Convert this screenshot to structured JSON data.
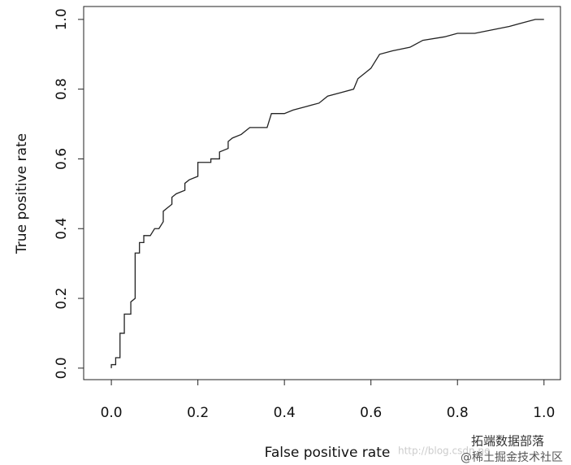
{
  "chart_data": {
    "type": "line",
    "xlabel": "False positive rate",
    "ylabel": "True positive rate",
    "x": [
      0,
      0,
      0.01,
      0.01,
      0.02,
      0.02,
      0.03,
      0.03,
      0.045,
      0.045,
      0.055,
      0.055,
      0.065,
      0.065,
      0.075,
      0.075,
      0.09,
      0.095,
      0.1,
      0.11,
      0.12,
      0.12,
      0.13,
      0.14,
      0.14,
      0.15,
      0.17,
      0.17,
      0.18,
      0.2,
      0.2,
      0.23,
      0.23,
      0.25,
      0.25,
      0.27,
      0.27,
      0.28,
      0.3,
      0.31,
      0.32,
      0.36,
      0.37,
      0.4,
      0.42,
      0.45,
      0.48,
      0.5,
      0.53,
      0.56,
      0.57,
      0.59,
      0.6,
      0.62,
      0.65,
      0.69,
      0.72,
      0.77,
      0.8,
      0.84,
      0.88,
      0.92,
      0.95,
      0.98,
      1.0
    ],
    "values": [
      0,
      0.01,
      0.01,
      0.03,
      0.03,
      0.1,
      0.1,
      0.155,
      0.155,
      0.19,
      0.2,
      0.33,
      0.33,
      0.36,
      0.36,
      0.38,
      0.38,
      0.39,
      0.4,
      0.4,
      0.42,
      0.45,
      0.46,
      0.47,
      0.49,
      0.5,
      0.51,
      0.53,
      0.54,
      0.55,
      0.59,
      0.59,
      0.6,
      0.6,
      0.62,
      0.63,
      0.65,
      0.66,
      0.67,
      0.68,
      0.69,
      0.69,
      0.73,
      0.73,
      0.74,
      0.75,
      0.76,
      0.78,
      0.79,
      0.8,
      0.83,
      0.85,
      0.86,
      0.9,
      0.91,
      0.92,
      0.94,
      0.95,
      0.96,
      0.96,
      0.97,
      0.98,
      0.99,
      1.0,
      1.0
    ],
    "color": "#222222",
    "xlim": [
      -0.064,
      1.038
    ],
    "ylim": [
      -0.033,
      1.037
    ],
    "xticks": [
      {
        "value": 0,
        "label": "0.0"
      },
      0.2,
      0.4,
      0.6,
      0.8,
      {
        "value": 1,
        "label": "1.0"
      }
    ],
    "yticks": [
      {
        "value": 0,
        "label": "0.0"
      },
      0.2,
      0.4,
      0.6,
      0.8,
      {
        "value": 1,
        "label": "1.0"
      }
    ],
    "annotations": [
      "http://blog.csdn.ne",
      "拓端数据部落",
      "@稀土掘金技术社区"
    ]
  }
}
